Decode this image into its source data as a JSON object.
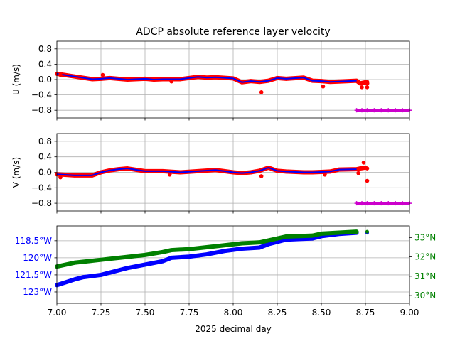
{
  "chart_data": [
    {
      "type": "scatter",
      "title": "ADCP absolute reference layer velocity",
      "xlabel": "",
      "ylabel": "U (m/s)",
      "xlim": [
        7.0,
        9.0
      ],
      "ylim": [
        -1.0,
        1.0
      ],
      "yticks": [
        0.8,
        0.4,
        0.0,
        -0.4,
        -0.8
      ],
      "ytick_labels": [
        "0.8",
        "0.4",
        "0.0",
        "−0.4",
        "−0.8"
      ],
      "grid": true,
      "series": [
        {
          "color": "#ff0000",
          "marker": "dot",
          "x": [
            7.0,
            7.1,
            7.2,
            7.25,
            7.3,
            7.4,
            7.5,
            7.55,
            7.6,
            7.7,
            7.8,
            7.85,
            7.9,
            8.0,
            8.05,
            8.1,
            8.15,
            8.2,
            8.25,
            8.3,
            8.4,
            8.45,
            8.5,
            8.55,
            8.6,
            8.7,
            8.72,
            8.75,
            8.76
          ],
          "y": [
            0.15,
            0.08,
            0.01,
            0.02,
            0.04,
            0.0,
            0.02,
            0.0,
            0.01,
            0.01,
            0.07,
            0.05,
            0.06,
            0.03,
            -0.07,
            -0.04,
            -0.06,
            -0.03,
            0.04,
            0.02,
            0.05,
            -0.03,
            -0.04,
            -0.06,
            -0.05,
            -0.03,
            -0.1,
            -0.07,
            -0.1
          ]
        },
        {
          "color": "#0000ff",
          "marker": "line",
          "x": [
            7.0,
            7.1,
            7.2,
            7.25,
            7.3,
            7.4,
            7.5,
            7.55,
            7.6,
            7.7,
            7.8,
            7.85,
            7.9,
            8.0,
            8.05,
            8.1,
            8.15,
            8.2,
            8.25,
            8.3,
            8.4,
            8.45,
            8.5,
            8.55,
            8.6,
            8.7
          ],
          "y": [
            0.15,
            0.08,
            0.01,
            0.02,
            0.04,
            0.0,
            0.02,
            0.0,
            0.01,
            0.01,
            0.07,
            0.05,
            0.06,
            0.03,
            -0.07,
            -0.04,
            -0.06,
            -0.03,
            0.04,
            0.02,
            0.05,
            -0.03,
            -0.04,
            -0.06,
            -0.05,
            -0.03
          ]
        },
        {
          "color": "#ff0000",
          "marker": "dot",
          "x": [
            7.02,
            7.26,
            7.65,
            8.16,
            8.51,
            8.73,
            8.76,
            8.76
          ],
          "y": [
            0.12,
            0.12,
            -0.05,
            -0.33,
            -0.18,
            -0.2,
            -0.2,
            -0.06
          ]
        },
        {
          "color": "#cc00cc",
          "marker": "plus",
          "x": [
            8.7,
            8.73,
            8.76,
            8.8,
            8.84,
            8.88,
            8.92,
            8.96,
            9.0
          ],
          "y": [
            -0.8,
            -0.8,
            -0.8,
            -0.8,
            -0.8,
            -0.8,
            -0.8,
            -0.8,
            -0.8
          ]
        }
      ]
    },
    {
      "type": "scatter",
      "title": "",
      "xlabel": "",
      "ylabel": "V (m/s)",
      "xlim": [
        7.0,
        9.0
      ],
      "ylim": [
        -1.0,
        1.0
      ],
      "yticks": [
        0.8,
        0.4,
        0.0,
        -0.4,
        -0.8
      ],
      "ytick_labels": [
        "0.8",
        "0.4",
        "0.0",
        "−0.4",
        "−0.8"
      ],
      "grid": true,
      "series": [
        {
          "color": "#ff0000",
          "marker": "dot",
          "x": [
            7.0,
            7.1,
            7.2,
            7.25,
            7.3,
            7.35,
            7.4,
            7.5,
            7.55,
            7.6,
            7.7,
            7.8,
            7.9,
            8.0,
            8.05,
            8.1,
            8.15,
            8.2,
            8.25,
            8.3,
            8.4,
            8.45,
            8.5,
            8.55,
            8.6,
            8.7,
            8.72,
            8.75
          ],
          "y": [
            -0.05,
            -0.08,
            -0.08,
            0.0,
            0.05,
            0.08,
            0.1,
            0.03,
            0.03,
            0.03,
            0.0,
            0.03,
            0.06,
            0.0,
            -0.02,
            0.0,
            0.04,
            0.12,
            0.04,
            0.02,
            0.0,
            0.0,
            0.01,
            0.02,
            0.07,
            0.08,
            0.1,
            0.12
          ]
        },
        {
          "color": "#0000ff",
          "marker": "line",
          "x": [
            7.0,
            7.1,
            7.2,
            7.25,
            7.3,
            7.35,
            7.4,
            7.5,
            7.55,
            7.6,
            7.7,
            7.8,
            7.9,
            8.0,
            8.05,
            8.1,
            8.15,
            8.2,
            8.25,
            8.3,
            8.4,
            8.45,
            8.5,
            8.55,
            8.6,
            8.7
          ],
          "y": [
            -0.05,
            -0.08,
            -0.08,
            0.0,
            0.05,
            0.08,
            0.1,
            0.03,
            0.03,
            0.03,
            0.0,
            0.03,
            0.06,
            0.0,
            -0.02,
            0.0,
            0.04,
            0.12,
            0.04,
            0.02,
            0.0,
            0.0,
            0.01,
            0.02,
            0.07,
            0.08
          ]
        },
        {
          "color": "#ff0000",
          "marker": "dot",
          "x": [
            7.02,
            7.64,
            8.16,
            8.52,
            8.71,
            8.74,
            8.76,
            8.76
          ],
          "y": [
            -0.13,
            -0.06,
            -0.1,
            -0.06,
            -0.02,
            0.25,
            0.1,
            -0.22
          ]
        },
        {
          "color": "#cc00cc",
          "marker": "plus",
          "x": [
            8.7,
            8.73,
            8.76,
            8.8,
            8.84,
            8.88,
            8.92,
            8.96,
            9.0
          ],
          "y": [
            -0.8,
            -0.8,
            -0.8,
            -0.8,
            -0.8,
            -0.8,
            -0.8,
            -0.8,
            -0.8
          ]
        }
      ]
    },
    {
      "type": "scatter",
      "title": "",
      "xlabel": "2025 decimal day",
      "ylabel": "",
      "xlim": [
        7.0,
        9.0
      ],
      "xticks": [
        7.0,
        7.25,
        7.5,
        7.75,
        8.0,
        8.25,
        8.5,
        8.75,
        9.0
      ],
      "xtick_labels": [
        "7.00",
        "7.25",
        "7.50",
        "7.75",
        "8.00",
        "8.25",
        "8.50",
        "8.75",
        "9.00"
      ],
      "grid": true,
      "left_axis": {
        "quantity": "longitude",
        "color": "#0000ff",
        "ylim": [
          -124.0,
          -117.2
        ],
        "ticks": [
          -118.5,
          -120.0,
          -121.5,
          -123.0
        ],
        "tick_labels": [
          "118.5°W",
          "120°W",
          "121.5°W",
          "123°W"
        ]
      },
      "right_axis": {
        "quantity": "latitude",
        "color": "#008000",
        "ylim": [
          29.6,
          33.6
        ],
        "ticks": [
          33.0,
          32.0,
          31.0,
          30.0
        ],
        "tick_labels": [
          "33°N",
          "32°N",
          "31°N",
          "30°N"
        ]
      },
      "series": [
        {
          "axis": "left",
          "color": "#0000ff",
          "x": [
            7.0,
            7.1,
            7.15,
            7.25,
            7.4,
            7.5,
            7.6,
            7.65,
            7.75,
            7.85,
            7.95,
            8.05,
            8.15,
            8.2,
            8.25,
            8.3,
            8.45,
            8.5,
            8.6,
            8.7
          ],
          "y": [
            -122.4,
            -121.9,
            -121.7,
            -121.5,
            -120.9,
            -120.6,
            -120.3,
            -120.0,
            -119.9,
            -119.7,
            -119.4,
            -119.2,
            -119.1,
            -118.8,
            -118.6,
            -118.4,
            -118.3,
            -118.1,
            -117.9,
            -117.8
          ],
          "extra_points": {
            "x": [
              8.76
            ],
            "y": [
              -117.8
            ]
          }
        },
        {
          "axis": "right",
          "color": "#008000",
          "x": [
            7.0,
            7.1,
            7.2,
            7.3,
            7.4,
            7.5,
            7.6,
            7.65,
            7.75,
            7.85,
            7.95,
            8.05,
            8.15,
            8.2,
            8.25,
            8.3,
            8.45,
            8.5,
            8.6,
            8.7
          ],
          "y": [
            31.5,
            31.7,
            31.8,
            31.9,
            32.0,
            32.1,
            32.25,
            32.35,
            32.4,
            32.5,
            32.6,
            32.7,
            32.75,
            32.85,
            32.95,
            33.05,
            33.1,
            33.2,
            33.25,
            33.3
          ],
          "extra_points": {
            "x": [
              8.76
            ],
            "y": [
              33.3
            ]
          }
        }
      ]
    }
  ]
}
